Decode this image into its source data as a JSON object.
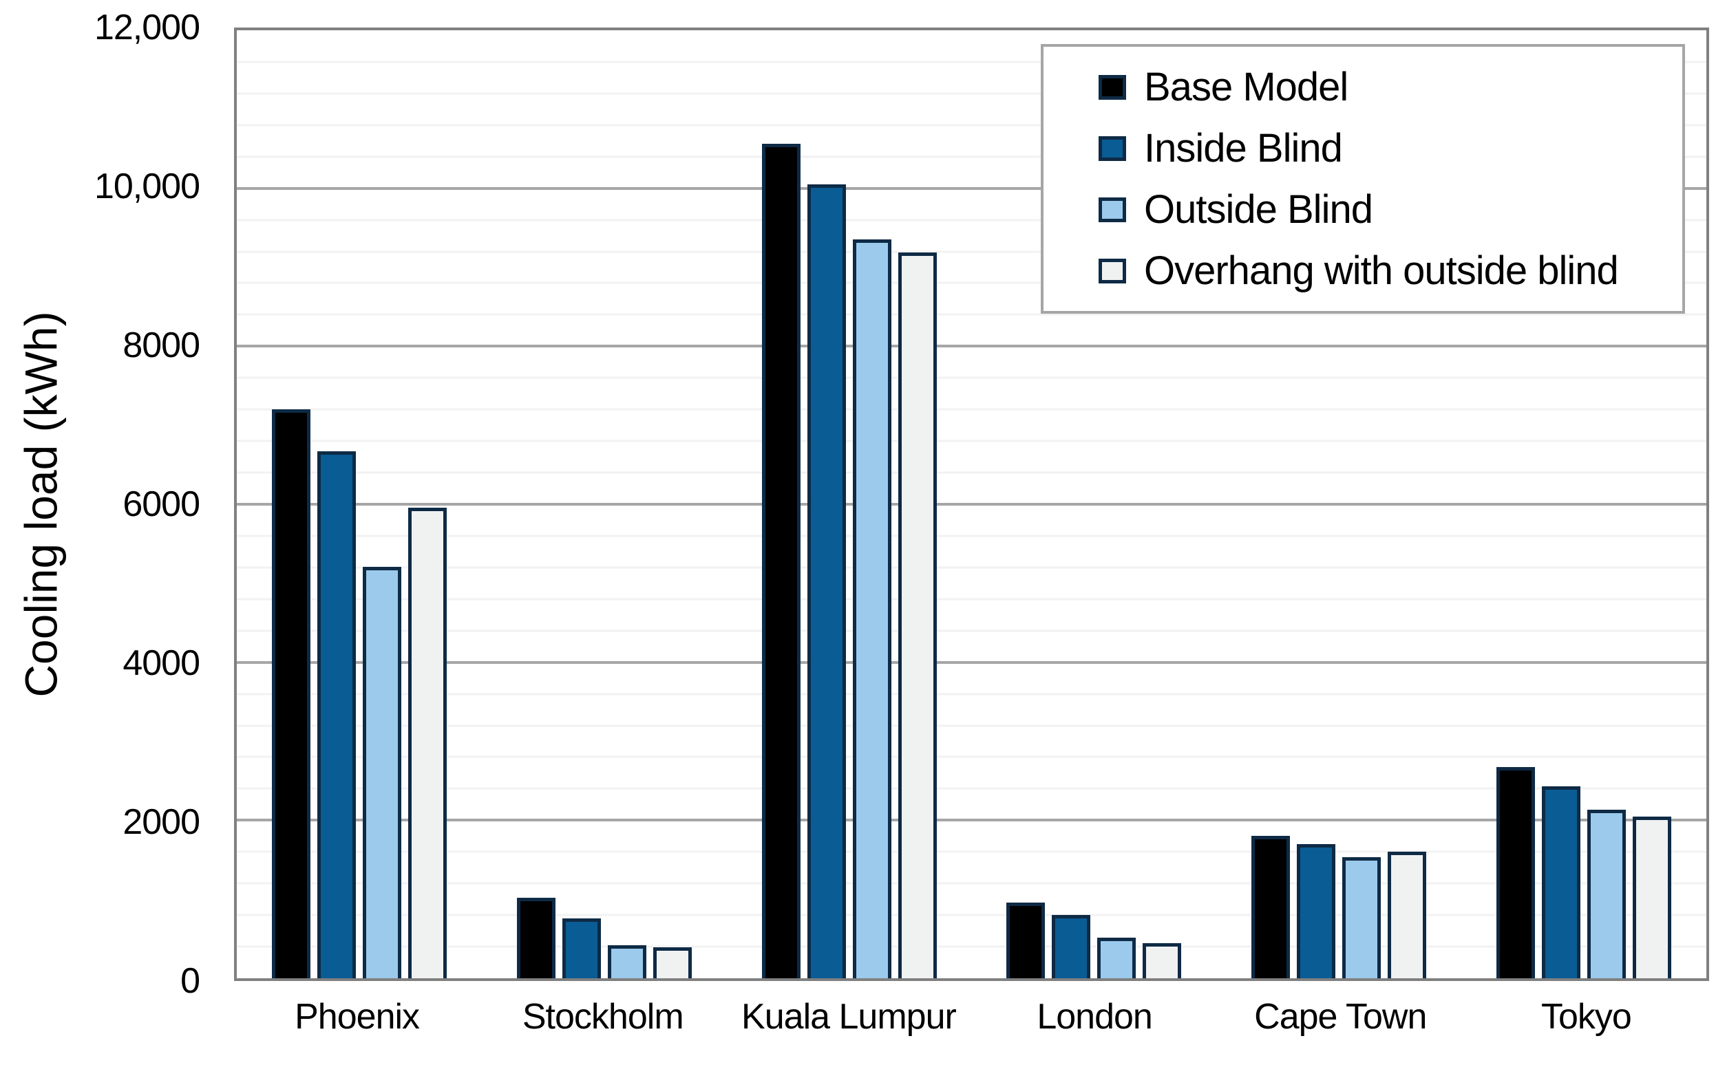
{
  "chart_data": {
    "type": "bar",
    "title": "",
    "xlabel": "",
    "ylabel": "Cooling load (kWh)",
    "ylim": [
      0,
      12000
    ],
    "y_major_step": 2000,
    "y_minor_step": 400,
    "grid": {
      "major": true,
      "minor": true
    },
    "legend_position": "top-right",
    "y_ticks": [
      {
        "value": 0,
        "label": "0"
      },
      {
        "value": 2000,
        "label": "2000"
      },
      {
        "value": 4000,
        "label": "4000"
      },
      {
        "value": 6000,
        "label": "6000"
      },
      {
        "value": 8000,
        "label": "8000"
      },
      {
        "value": 10000,
        "label": "10,000"
      },
      {
        "value": 12000,
        "label": "12,000"
      }
    ],
    "categories": [
      "Phoenix",
      "Stockholm",
      "Kuala Lumpur",
      "London",
      "Cape Town",
      "Tokyo"
    ],
    "series": [
      {
        "name": "Base Model",
        "color": "#000000",
        "values": [
          7200,
          1020,
          10560,
          960,
          1800,
          2670
        ]
      },
      {
        "name": "Inside Blind",
        "color": "#0A5C94",
        "values": [
          6670,
          760,
          10050,
          800,
          1700,
          2430
        ]
      },
      {
        "name": "Outside Blind",
        "color": "#9BCAEC",
        "values": [
          5210,
          420,
          9350,
          510,
          1530,
          2130
        ]
      },
      {
        "name": "Overhang with outside blind",
        "color": "#F0F1F1",
        "values": [
          5960,
          390,
          9190,
          440,
          1600,
          2050
        ]
      }
    ],
    "colors": {
      "bar_border": "#0E2A45",
      "major_gridline": "#A6A6A6",
      "minor_gridline": "#F2F2F2",
      "plot_border": "#808080",
      "legend_border": "#A6A6A6",
      "text": "#000000"
    }
  }
}
